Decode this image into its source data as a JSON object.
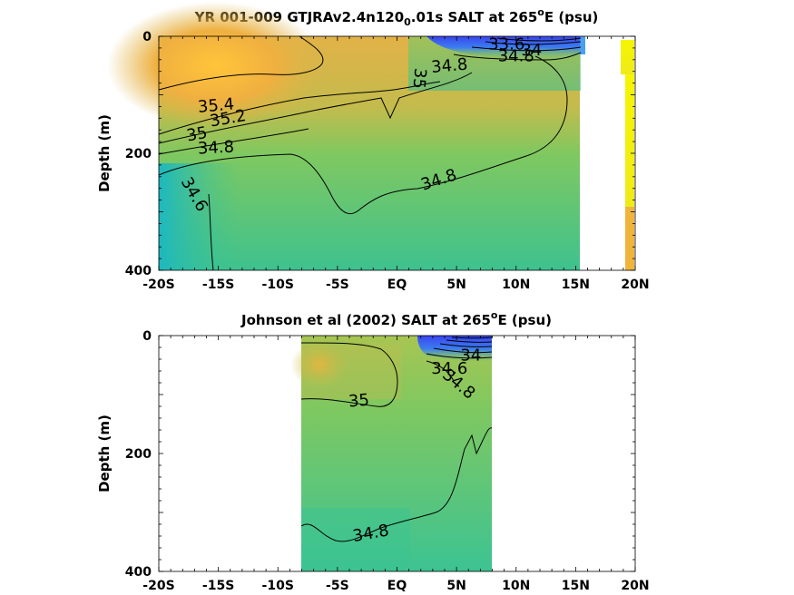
{
  "chart_data": [
    {
      "type": "heatmap",
      "title": "YR 001-009 GTJRAv2.4n120",
      "title_subscript": "0",
      "title_suffix": ".01s SALT at 265",
      "title_superscript": "o",
      "title_end": "E (psu)",
      "ylabel": "Depth (m)",
      "xlim": [
        -20,
        20
      ],
      "ylim": [
        0,
        400
      ],
      "y_reversed": true,
      "x_ticks": [
        {
          "value": -20,
          "label": "-20S"
        },
        {
          "value": -15,
          "label": "-15S"
        },
        {
          "value": -10,
          "label": "-10S"
        },
        {
          "value": -5,
          "label": "-5S"
        },
        {
          "value": 0,
          "label": "EQ"
        },
        {
          "value": 5,
          "label": "5N"
        },
        {
          "value": 10,
          "label": "10N"
        },
        {
          "value": 15,
          "label": "15N"
        },
        {
          "value": 20,
          "label": "20N"
        }
      ],
      "y_ticks": [
        {
          "value": 0,
          "label": "0"
        },
        {
          "value": 200,
          "label": "200"
        },
        {
          "value": 400,
          "label": "400"
        }
      ],
      "data_extent_x": [
        -20,
        17.8
      ],
      "contour_labels": [
        {
          "text": "35.4",
          "x": -15.2,
          "y": 118,
          "angle": -5
        },
        {
          "text": "35.2",
          "x": -14.2,
          "y": 140,
          "angle": -10
        },
        {
          "text": "35",
          "x": -16.8,
          "y": 167,
          "angle": -10
        },
        {
          "text": "34.8",
          "x": -15.2,
          "y": 190,
          "angle": -3
        },
        {
          "text": "34.6",
          "x": -17.0,
          "y": 270,
          "angle": 60
        },
        {
          "text": "34.8",
          "x": 3.5,
          "y": 245,
          "angle": -18
        },
        {
          "text": "34.8",
          "x": 4.4,
          "y": 50,
          "angle": -5
        },
        {
          "text": "35",
          "x": 1.9,
          "y": 72,
          "angle": 95
        },
        {
          "text": "34.8",
          "x": 10.0,
          "y": 33,
          "angle": 0
        },
        {
          "text": "34",
          "x": 11.3,
          "y": 23,
          "angle": 0
        },
        {
          "text": "33.6",
          "x": 9.2,
          "y": 13,
          "angle": 0
        }
      ]
    },
    {
      "type": "heatmap",
      "title": "Johnson et al (2002) SALT at 265",
      "title_superscript": "o",
      "title_end": "E (psu)",
      "ylabel": "Depth (m)",
      "xlim": [
        -20,
        20
      ],
      "ylim": [
        0,
        400
      ],
      "y_reversed": true,
      "x_ticks": [
        {
          "value": -20,
          "label": "-20S"
        },
        {
          "value": -15,
          "label": "-15S"
        },
        {
          "value": -10,
          "label": "-10S"
        },
        {
          "value": -5,
          "label": "-5S"
        },
        {
          "value": 0,
          "label": "EQ"
        },
        {
          "value": 5,
          "label": "5N"
        },
        {
          "value": 10,
          "label": "10N"
        },
        {
          "value": 15,
          "label": "15N"
        },
        {
          "value": 20,
          "label": "20N"
        }
      ],
      "y_ticks": [
        {
          "value": 0,
          "label": "0"
        },
        {
          "value": 200,
          "label": "200"
        },
        {
          "value": 400,
          "label": "400"
        }
      ],
      "data_extent_x": [
        -8,
        8
      ],
      "contour_labels": [
        {
          "text": "35",
          "x": -3.2,
          "y": 110,
          "angle": -5
        },
        {
          "text": "34.8",
          "x": -2.2,
          "y": 335,
          "angle": -10
        },
        {
          "text": "34.6",
          "x": 4.4,
          "y": 55,
          "angle": 0
        },
        {
          "text": "34.8",
          "x": 5.2,
          "y": 82,
          "angle": 40
        },
        {
          "text": "34",
          "x": 6.2,
          "y": 33,
          "angle": 0
        }
      ]
    }
  ]
}
